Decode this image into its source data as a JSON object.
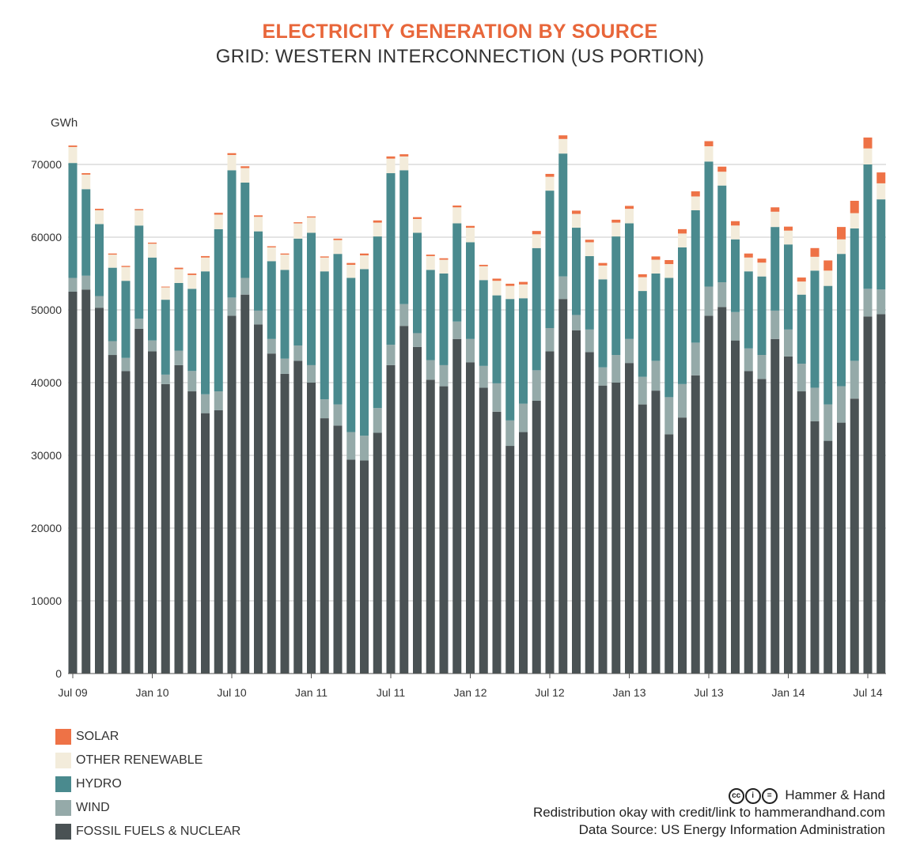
{
  "header": {
    "title": "ELECTRICITY GENERATION BY SOURCE",
    "subtitle": "GRID: WESTERN INTERCONNECTION (US PORTION)"
  },
  "chart_data": {
    "type": "bar",
    "stacked": true,
    "ylabel": "GWh",
    "ylim": [
      0,
      74000
    ],
    "yticks": [
      0,
      10000,
      20000,
      30000,
      40000,
      50000,
      60000,
      70000
    ],
    "grid": true,
    "xtick_labels": [
      {
        "index": 0,
        "label": "Jul 09"
      },
      {
        "index": 6,
        "label": "Jan 10"
      },
      {
        "index": 12,
        "label": "Jul 10"
      },
      {
        "index": 18,
        "label": "Jan 11"
      },
      {
        "index": 24,
        "label": "Jul 11"
      },
      {
        "index": 30,
        "label": "Jan 12"
      },
      {
        "index": 36,
        "label": "Jul 12"
      },
      {
        "index": 42,
        "label": "Jan 13"
      },
      {
        "index": 48,
        "label": "Jul 13"
      },
      {
        "index": 54,
        "label": "Jan 14"
      },
      {
        "index": 60,
        "label": "Jul 14"
      }
    ],
    "categories": [
      "Jul 09",
      "Aug 09",
      "Sep 09",
      "Oct 09",
      "Nov 09",
      "Dec 09",
      "Jan 10",
      "Feb 10",
      "Mar 10",
      "Apr 10",
      "May 10",
      "Jun 10",
      "Jul 10",
      "Aug 10",
      "Sep 10",
      "Oct 10",
      "Nov 10",
      "Dec 10",
      "Jan 11",
      "Feb 11",
      "Mar 11",
      "Apr 11",
      "May 11",
      "Jun 11",
      "Jul 11",
      "Aug 11",
      "Sep 11",
      "Oct 11",
      "Nov 11",
      "Dec 11",
      "Jan 12",
      "Feb 12",
      "Mar 12",
      "Apr 12",
      "May 12",
      "Jun 12",
      "Jul 12",
      "Aug 12",
      "Sep 12",
      "Oct 12",
      "Nov 12",
      "Dec 12",
      "Jan 13",
      "Feb 13",
      "Mar 13",
      "Apr 13",
      "May 13",
      "Jun 13",
      "Jul 13",
      "Aug 13",
      "Sep 13",
      "Oct 13",
      "Nov 13",
      "Dec 13",
      "Jan 14",
      "Feb 14",
      "Mar 14",
      "Apr 14",
      "May 14",
      "Jun 14",
      "Jul 14",
      "Aug 14"
    ],
    "series": [
      {
        "name": "FOSSIL FUELS & NUCLEAR",
        "color": "#4a5254",
        "values": [
          52500,
          52800,
          50300,
          43800,
          41600,
          47400,
          44300,
          39800,
          42400,
          38800,
          35800,
          36200,
          49200,
          52100,
          48000,
          44000,
          41200,
          43000,
          40000,
          35100,
          34100,
          29400,
          29300,
          33100,
          42400,
          47800,
          44900,
          40400,
          39500,
          46000,
          42800,
          39300,
          36000,
          31300,
          33200,
          37500,
          44300,
          51500,
          47200,
          44200,
          39600,
          40000,
          42700,
          37000,
          38900,
          32900,
          35200,
          41000,
          49200,
          50400,
          45800,
          41600,
          40500,
          46000,
          43600,
          38800,
          34700,
          32000,
          34500,
          37800,
          49100,
          49400
        ]
      },
      {
        "name": "WIND",
        "color": "#95aaa9",
        "values": [
          1900,
          1900,
          1600,
          1900,
          1800,
          1400,
          1500,
          1300,
          2000,
          2800,
          2600,
          2600,
          2500,
          2300,
          1900,
          2000,
          2100,
          2100,
          2400,
          2600,
          2900,
          3800,
          3400,
          3400,
          2800,
          3000,
          1900,
          2700,
          2900,
          2400,
          3200,
          3000,
          3900,
          3500,
          3900,
          4200,
          3200,
          3100,
          2100,
          3100,
          2500,
          3800,
          3300,
          3800,
          4100,
          5100,
          4600,
          4500,
          4000,
          3400,
          3900,
          3100,
          3300,
          3900,
          3700,
          3800,
          4600,
          5000,
          5000,
          5200,
          3800,
          3400
        ]
      },
      {
        "name": "HYDRO",
        "color": "#4a8a8e",
        "values": [
          15800,
          11900,
          9900,
          10100,
          10600,
          12800,
          11400,
          10300,
          9300,
          11300,
          16900,
          22300,
          17500,
          13100,
          10900,
          10700,
          12200,
          14700,
          18200,
          17600,
          20700,
          21200,
          22900,
          23600,
          23600,
          18400,
          13800,
          12400,
          12600,
          13500,
          13300,
          11800,
          12100,
          16700,
          14500,
          16800,
          18900,
          16900,
          12000,
          10100,
          12100,
          16300,
          15900,
          11800,
          12000,
          16400,
          18800,
          18200,
          17200,
          13300,
          10000,
          10600,
          10800,
          11500,
          11700,
          9500,
          16100,
          16300,
          18200,
          18200,
          17100,
          12400
        ]
      },
      {
        "name": "OTHER RENEWABLE",
        "color": "#f3ecdb",
        "values": [
          2200,
          2000,
          1900,
          1800,
          1900,
          2100,
          1900,
          1700,
          1900,
          1900,
          1900,
          2000,
          2100,
          2000,
          2000,
          1900,
          2100,
          2100,
          2100,
          1900,
          1900,
          1800,
          1900,
          1900,
          2000,
          1900,
          1900,
          1900,
          1900,
          2200,
          2000,
          1900,
          2000,
          1800,
          1900,
          1900,
          1900,
          2000,
          1900,
          1900,
          1900,
          1900,
          2000,
          1900,
          1900,
          1900,
          1900,
          1900,
          2100,
          1900,
          1900,
          1900,
          1900,
          2100,
          1900,
          1800,
          1900,
          2100,
          2000,
          2100,
          2200,
          2200
        ]
      },
      {
        "name": "SOLAR",
        "color": "#ee7246",
        "values": [
          200,
          200,
          200,
          150,
          150,
          150,
          150,
          100,
          200,
          200,
          200,
          250,
          250,
          250,
          200,
          150,
          150,
          150,
          150,
          150,
          200,
          250,
          250,
          300,
          300,
          300,
          250,
          200,
          200,
          250,
          250,
          200,
          300,
          300,
          350,
          450,
          400,
          500,
          450,
          350,
          350,
          400,
          400,
          400,
          450,
          550,
          600,
          700,
          700,
          700,
          600,
          550,
          550,
          600,
          550,
          550,
          1200,
          1400,
          1700,
          1700,
          1500,
          1500
        ]
      }
    ]
  },
  "legend": {
    "items": [
      {
        "label": "SOLAR",
        "color": "#ee7246"
      },
      {
        "label": "OTHER RENEWABLE",
        "color": "#f3ecdb"
      },
      {
        "label": "HYDRO",
        "color": "#4a8a8e"
      },
      {
        "label": "WIND",
        "color": "#95aaa9"
      },
      {
        "label": "FOSSIL FUELS & NUCLEAR",
        "color": "#4a5254"
      }
    ]
  },
  "credits": {
    "cc_icons": [
      "cc-icon",
      "by-icon",
      "nd-icon"
    ],
    "brand": "Hammer & Hand",
    "line2": "Redistribution okay with credit/link to hammerandhand.com",
    "line3": "Data Source: US Energy Information Administration"
  }
}
